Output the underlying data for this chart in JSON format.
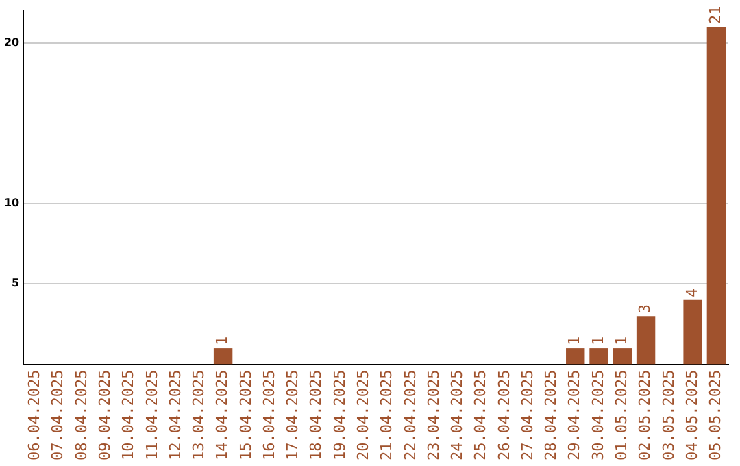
{
  "chart_data": {
    "type": "bar",
    "categories": [
      "06.04.2025",
      "07.04.2025",
      "08.04.2025",
      "09.04.2025",
      "10.04.2025",
      "11.04.2025",
      "12.04.2025",
      "13.04.2025",
      "14.04.2025",
      "15.04.2025",
      "16.04.2025",
      "17.04.2025",
      "18.04.2025",
      "19.04.2025",
      "20.04.2025",
      "21.04.2025",
      "22.04.2025",
      "23.04.2025",
      "24.04.2025",
      "25.04.2025",
      "26.04.2025",
      "27.04.2025",
      "28.04.2025",
      "29.04.2025",
      "30.04.2025",
      "01.05.2025",
      "02.05.2025",
      "03.05.2025",
      "04.05.2025",
      "05.05.2025"
    ],
    "values": [
      0,
      0,
      0,
      0,
      0,
      0,
      0,
      0,
      1,
      0,
      0,
      0,
      0,
      0,
      0,
      0,
      0,
      0,
      0,
      0,
      0,
      0,
      0,
      1,
      1,
      1,
      3,
      0,
      4,
      21
    ],
    "value_labels": [
      null,
      null,
      null,
      null,
      null,
      null,
      null,
      null,
      "1",
      null,
      null,
      null,
      null,
      null,
      null,
      null,
      null,
      null,
      null,
      null,
      null,
      null,
      null,
      "1",
      "1",
      "1",
      "3",
      null,
      "4",
      "21"
    ],
    "color": "#a0522d",
    "ylim": [
      0,
      22
    ],
    "yticks": [
      5,
      10,
      20
    ],
    "grid": "y"
  }
}
